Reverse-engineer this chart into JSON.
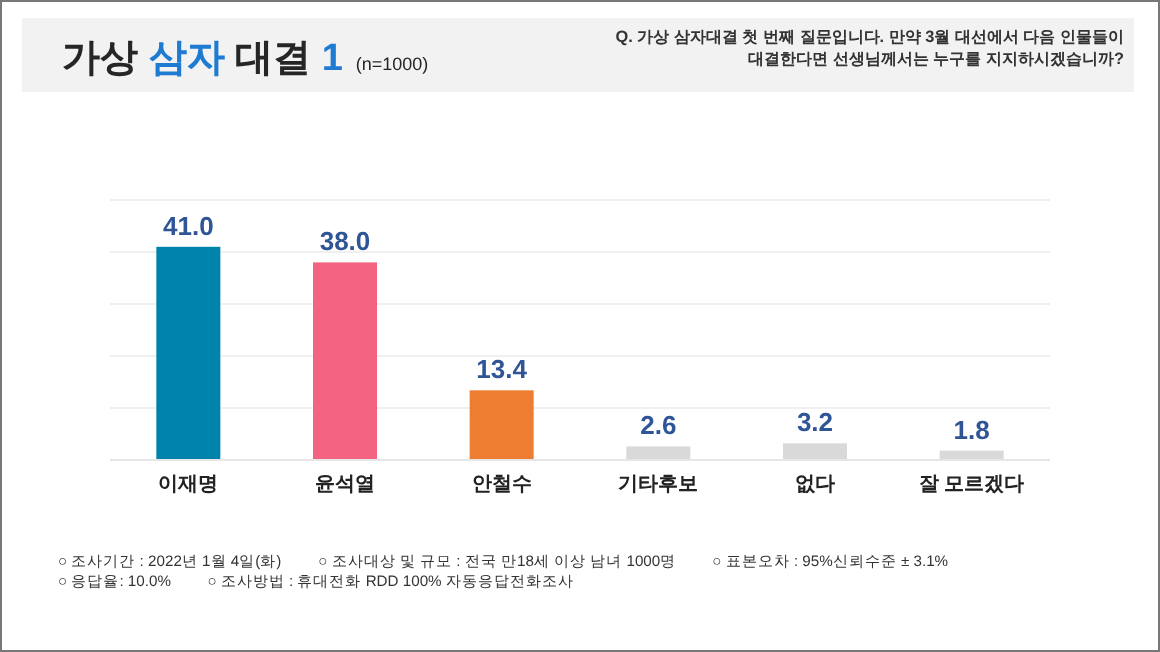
{
  "chart_data": {
    "type": "bar",
    "title": "가상 삼자 대결 1",
    "subtitle": "(n=1000)",
    "categories": [
      "이재명",
      "윤석열",
      "안철수",
      "기타후보",
      "없다",
      "잘 모르겠다"
    ],
    "values": [
      41.0,
      38.0,
      13.4,
      2.6,
      3.2,
      1.8
    ],
    "colors": [
      "#0083ab",
      "#f56382",
      "#ed7d31",
      "#d9d9d9",
      "#d9d9d9",
      "#d9d9d9"
    ],
    "ylim": [
      0,
      50
    ],
    "yticks": [
      {
        "value": 0,
        "label": null
      },
      {
        "value": 10,
        "label": null
      },
      {
        "value": 20,
        "label": null
      },
      {
        "value": 30,
        "label": null
      },
      {
        "value": 40,
        "label": null
      },
      {
        "value": 50,
        "label": null
      }
    ],
    "grid": "y",
    "tick_labels": "x",
    "value_labels": [
      "41.0",
      "38.0",
      "13.4",
      "2.6",
      "3.2",
      "1.8"
    ],
    "annotations": [
      "Q. 가상 삼자대결 첫 번째 질문입니다. 만약 3월 대선에서 다음 인물들이 대결한다면 선생님께서는 누구를 지지하시겠습니까?",
      "○ 조사기간 : 2022년 1월 4일(화)",
      "○ 조사대상 및 규모 : 전국 만18세 이상 남녀 1000명",
      "○ 표본오차 : 95%신뢰수준 ± 3.1%",
      "○ 응답율: 10.0%",
      "○ 조사방법 : 휴대전화 RDD 100% 자동응답전화조사"
    ]
  }
}
